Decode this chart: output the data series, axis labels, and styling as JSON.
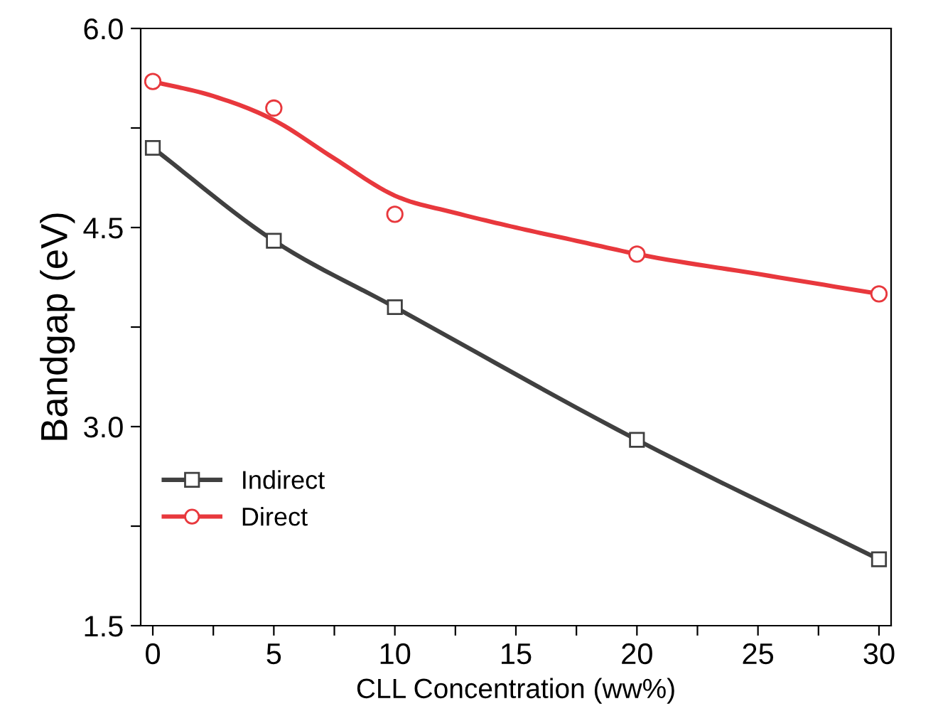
{
  "chart_data": {
    "type": "line",
    "xlabel": "CLL Concentration (ww%)",
    "ylabel": "Bandgap (eV)",
    "x": [
      0,
      5,
      10,
      20,
      30
    ],
    "series": [
      {
        "name": "Indirect",
        "color": "#404040",
        "type": "line",
        "marker": "square",
        "values": [
          5.1,
          4.4,
          3.9,
          2.9,
          2.0
        ]
      },
      {
        "name": "Direct",
        "color": "#e8383d",
        "type": "scatter",
        "marker": "circle",
        "values": [
          5.6,
          5.4,
          4.6,
          4.3,
          4.0
        ]
      },
      {
        "color": "#e8383d",
        "marker": "none",
        "x": [
          0,
          2.5,
          5,
          7.5,
          10,
          12.5,
          15,
          17.5,
          20,
          25,
          30
        ],
        "values": [
          5.6,
          5.49,
          5.31,
          5.02,
          4.74,
          4.61,
          4.5,
          4.4,
          4.3,
          4.15,
          4.0
        ]
      }
    ],
    "xlim": [
      -0.5,
      30.5
    ],
    "ylim": [
      1.5,
      6.0
    ],
    "xticks": [
      0,
      {
        "value": 2.5,
        "label": null
      },
      5,
      {
        "value": 7.5,
        "label": null
      },
      10,
      {
        "value": 12.5,
        "label": null
      },
      15,
      {
        "value": 17.5,
        "label": null
      },
      20,
      {
        "value": 22.5,
        "label": null
      },
      25,
      {
        "value": 27.5,
        "label": null
      },
      30
    ],
    "yticks": [
      {
        "value": 1.5,
        "label": "1.5"
      },
      {
        "value": 2.25,
        "label": null
      },
      {
        "value": 3.0,
        "label": "3.0"
      },
      {
        "value": 3.75,
        "label": null
      },
      {
        "value": 4.5,
        "label": "4.5"
      },
      {
        "value": 5.25,
        "label": null
      },
      {
        "value": 6.0,
        "label": "6.0"
      }
    ],
    "grid": false,
    "legend": "bottom left"
  }
}
